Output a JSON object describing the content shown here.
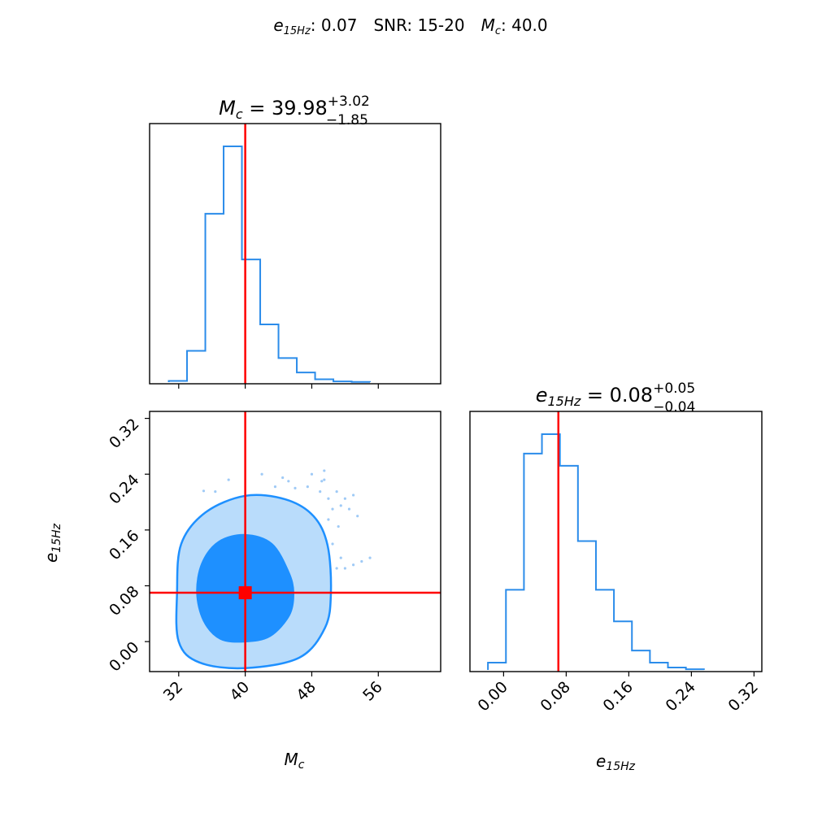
{
  "suptitle": {
    "e_label": "e",
    "e_sub": "15Hz",
    "e_val": ": 0.07",
    "snr": "SNR: 15-20",
    "mc_label": "M",
    "mc_sub": "c",
    "mc_val": ": 40.0"
  },
  "colors": {
    "hist": "#2b8cea",
    "contour_inner": "#1e90ff",
    "contour_outer": "#b9dcfb",
    "truth": "#ff0000",
    "axis": "#000000"
  },
  "chart_data": [
    {
      "type": "histogram",
      "panel": "mc-hist",
      "title_var": "M",
      "title_sub": "c",
      "title_eq": " = 39.98",
      "title_plus": "+3.02",
      "title_minus": "−1.85",
      "xlim": [
        28.5,
        63.5
      ],
      "xticks": [
        32,
        40,
        48,
        56
      ],
      "bins": [
        30.8,
        33.0,
        35.2,
        37.4,
        39.6,
        41.8,
        44.0,
        46.2,
        48.4,
        50.6,
        52.8,
        55.0
      ],
      "counts": [
        0.005,
        0.13,
        0.7,
        0.98,
        0.51,
        0.24,
        0.1,
        0.04,
        0.012,
        0.003,
        0.001
      ],
      "truth": 40.0
    },
    {
      "type": "histogram",
      "panel": "e-hist",
      "title_var": "e",
      "title_sub": "15Hz",
      "title_eq": " = 0.08",
      "title_plus": "+0.05",
      "title_minus": "−0.04",
      "xlim": [
        -0.043,
        0.33
      ],
      "xticks": [
        "0.00",
        "0.08",
        "0.16",
        "0.24",
        "0.32"
      ],
      "bins": [
        -0.02,
        0.003,
        0.026,
        0.049,
        0.072,
        0.095,
        0.118,
        0.141,
        0.164,
        0.187,
        0.21,
        0.233,
        0.256
      ],
      "counts": [
        0.03,
        0.33,
        0.89,
        0.97,
        0.84,
        0.53,
        0.33,
        0.2,
        0.08,
        0.03,
        0.01,
        0.003
      ],
      "truth": 0.07
    },
    {
      "type": "contour",
      "panel": "joint",
      "xlabel_var": "M",
      "xlabel_sub": "c",
      "ylabel_var": "e",
      "ylabel_sub": "15Hz",
      "xlim": [
        28.5,
        63.5
      ],
      "ylim": [
        -0.043,
        0.33
      ],
      "xticks": [
        32,
        40,
        48,
        56
      ],
      "yticks": [
        "0.00",
        "0.08",
        "0.16",
        "0.24",
        "0.32"
      ],
      "truth": [
        40.0,
        0.07
      ],
      "outer_level": [
        [
          40.0,
          0.209
        ],
        [
          44.8,
          0.204
        ],
        [
          48.2,
          0.18
        ],
        [
          49.9,
          0.138
        ],
        [
          50.3,
          0.07
        ],
        [
          49.6,
          0.02
        ],
        [
          46.5,
          -0.023
        ],
        [
          40.0,
          -0.038
        ],
        [
          34.5,
          -0.03
        ],
        [
          32.0,
          0.0
        ],
        [
          31.8,
          0.07
        ],
        [
          32.3,
          0.14
        ],
        [
          35.2,
          0.185
        ]
      ],
      "inner_level": [
        [
          40.0,
          0.153
        ],
        [
          43.2,
          0.14
        ],
        [
          45.2,
          0.1
        ],
        [
          45.8,
          0.07
        ],
        [
          45.3,
          0.038
        ],
        [
          43.0,
          0.008
        ],
        [
          40.0,
          0.0
        ],
        [
          37.0,
          0.004
        ],
        [
          35.0,
          0.03
        ],
        [
          34.2,
          0.07
        ],
        [
          34.8,
          0.112
        ],
        [
          36.8,
          0.143
        ]
      ],
      "scatter": [
        [
          35.0,
          0.216
        ],
        [
          36.4,
          0.215
        ],
        [
          43.6,
          0.222
        ],
        [
          45.2,
          0.23
        ],
        [
          46.0,
          0.22
        ],
        [
          47.5,
          0.222
        ],
        [
          49.0,
          0.215
        ],
        [
          49.2,
          0.23
        ],
        [
          49.5,
          0.232
        ],
        [
          50.0,
          0.205
        ],
        [
          51.0,
          0.215
        ],
        [
          50.5,
          0.19
        ],
        [
          51.5,
          0.195
        ],
        [
          52.0,
          0.205
        ],
        [
          50.0,
          0.175
        ],
        [
          51.2,
          0.165
        ],
        [
          52.5,
          0.19
        ],
        [
          53.0,
          0.21
        ],
        [
          50.5,
          0.14
        ],
        [
          51.5,
          0.12
        ],
        [
          52.0,
          0.105
        ],
        [
          53.0,
          0.11
        ],
        [
          54.0,
          0.115
        ],
        [
          55.0,
          0.12
        ],
        [
          51.0,
          0.105
        ],
        [
          49.5,
          0.245
        ],
        [
          48.0,
          0.24
        ],
        [
          44.5,
          0.235
        ],
        [
          42.0,
          0.24
        ],
        [
          38.0,
          0.232
        ],
        [
          53.5,
          0.18
        ]
      ]
    }
  ]
}
